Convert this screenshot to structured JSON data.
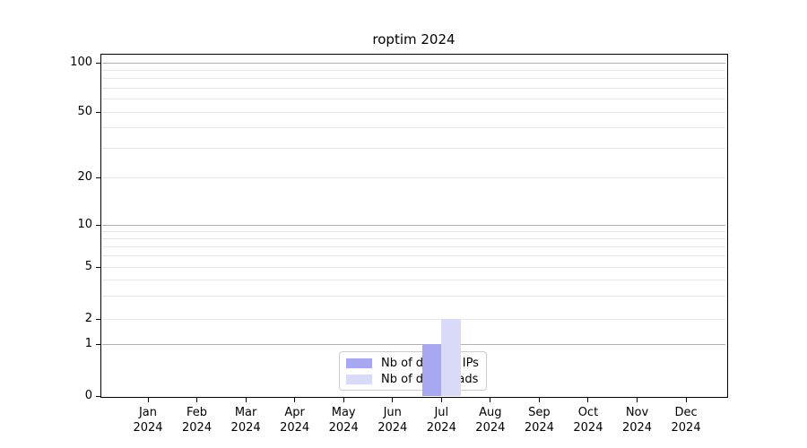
{
  "chart_data": {
    "type": "bar",
    "title": "roptim 2024",
    "categories": [
      "Jan 2024",
      "Feb 2024",
      "Mar 2024",
      "Apr 2024",
      "May 2024",
      "Jun 2024",
      "Jul 2024",
      "Aug 2024",
      "Sep 2024",
      "Oct 2024",
      "Nov 2024",
      "Dec 2024"
    ],
    "x_months": [
      "Jan",
      "Feb",
      "Mar",
      "Apr",
      "May",
      "Jun",
      "Jul",
      "Aug",
      "Sep",
      "Oct",
      "Nov",
      "Dec"
    ],
    "x_year": "2024",
    "series": [
      {
        "name": "Nb of distinct IPs",
        "color": "#a8a8f2",
        "values": [
          0,
          0,
          0,
          0,
          0,
          0,
          1,
          0,
          0,
          0,
          0,
          0
        ]
      },
      {
        "name": "Nb of downloads",
        "color": "#d9d9f8",
        "values": [
          0,
          0,
          0,
          0,
          0,
          0,
          2,
          0,
          0,
          0,
          0,
          0
        ]
      }
    ],
    "yscale": "log",
    "yticks": [
      0,
      1,
      2,
      5,
      10,
      20,
      50,
      100
    ],
    "ytick_labels": [
      "0",
      "1",
      "2",
      "5",
      "10",
      "20",
      "50",
      "100"
    ],
    "ylim": [
      0,
      110
    ],
    "grid": "horizontal, log major and minor",
    "legend_position": "lower center"
  },
  "colors": {
    "grid_major": "#b0b0b0",
    "grid_minor": "#e7e7e7",
    "axis": "#000000",
    "background": "#ffffff",
    "legend_border": "#cccccc"
  }
}
